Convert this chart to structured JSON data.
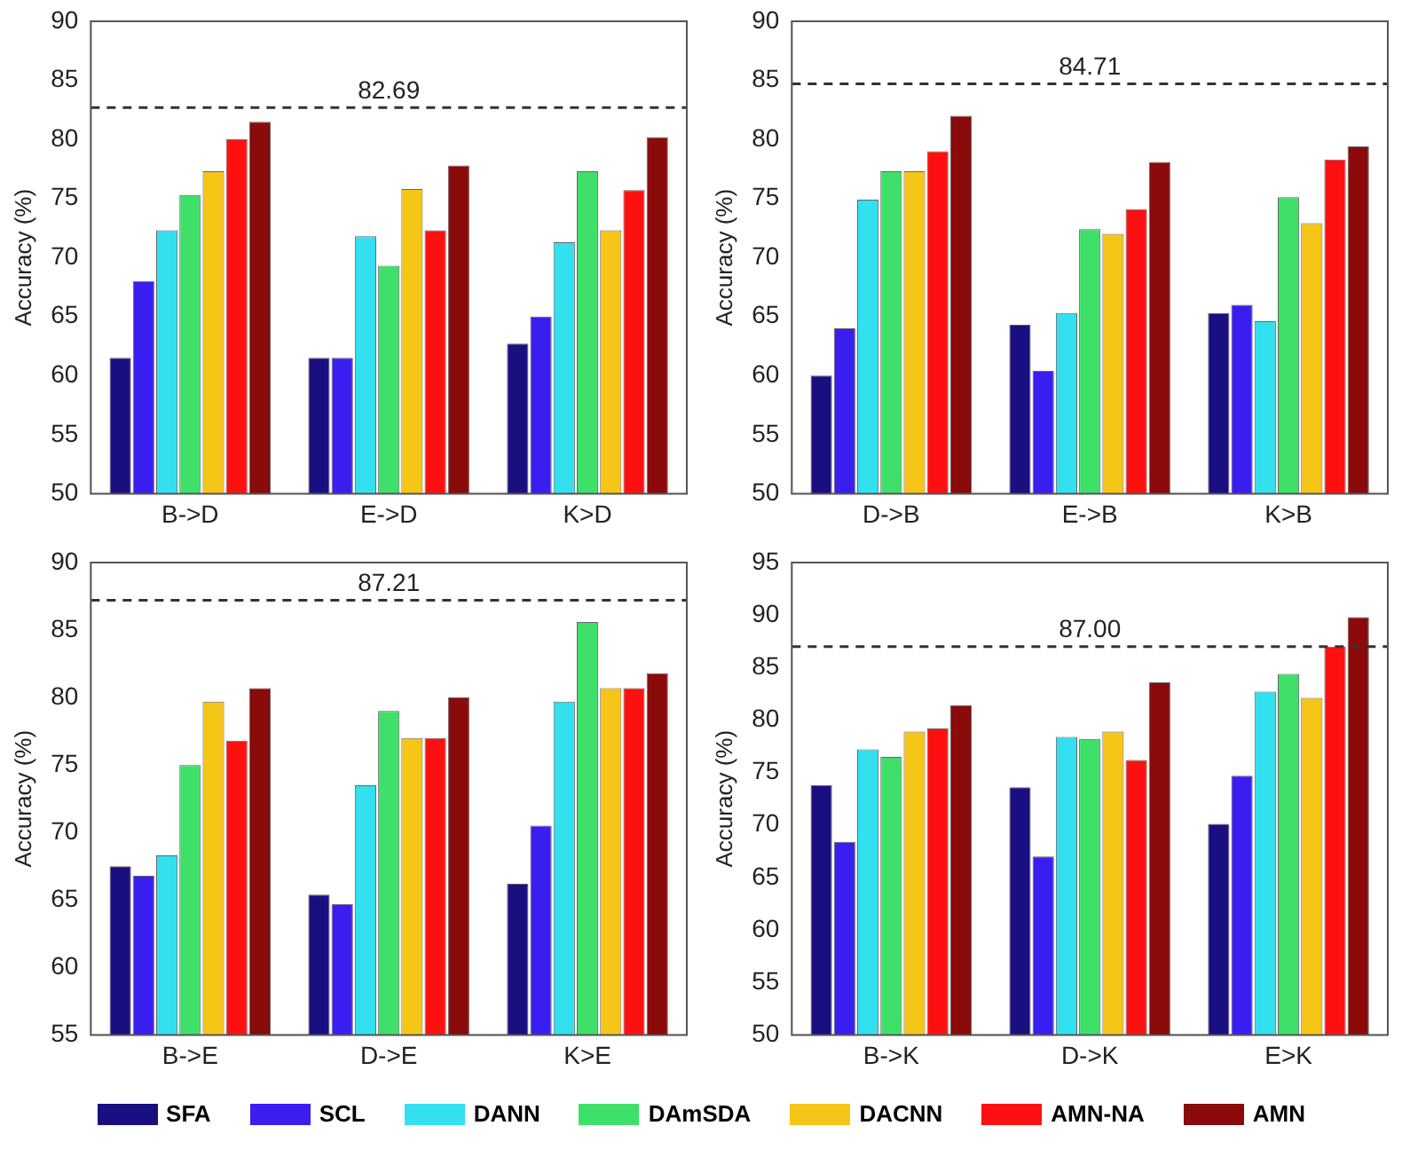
{
  "chart_data": [
    {
      "type": "bar",
      "ylabel": "Accuracy (%)",
      "categories": [
        "B->D",
        "E->D",
        "K>D"
      ],
      "ylim": [
        50,
        90
      ],
      "yticks": [
        50,
        55,
        60,
        65,
        70,
        75,
        80,
        85,
        90
      ],
      "grid": false,
      "legend": "bottom",
      "series": [
        {
          "name": "SFA",
          "color": "#1a0f80",
          "values": [
            61.5,
            61.5,
            62.7
          ]
        },
        {
          "name": "SCL",
          "color": "#3a1ef0",
          "values": [
            68,
            61.5,
            65
          ]
        },
        {
          "name": "DANN",
          "color": "#33e0f0",
          "values": [
            72.3,
            71.8,
            71.3
          ]
        },
        {
          "name": "DAmSDA",
          "color": "#3ee06a",
          "values": [
            75.3,
            69.3,
            77.3
          ]
        },
        {
          "name": "DACNN",
          "color": "#f5c518",
          "values": [
            77.3,
            75.8,
            72.3
          ]
        },
        {
          "name": "AMN-NA",
          "color": "#ff1010",
          "values": [
            80,
            72.3,
            75.7
          ]
        },
        {
          "name": "AMN",
          "color": "#8b0a0a",
          "values": [
            81.5,
            77.8,
            80.2
          ]
        }
      ],
      "ref_lines": [
        {
          "axis": "y",
          "value": 82.69,
          "label": "82.69",
          "line_style": "dashed"
        }
      ]
    },
    {
      "type": "bar",
      "ylabel": "Accuracy (%)",
      "categories": [
        "D->B",
        "E->B",
        "K>B"
      ],
      "ylim": [
        50,
        90
      ],
      "yticks": [
        50,
        55,
        60,
        65,
        70,
        75,
        80,
        85,
        90
      ],
      "grid": false,
      "series": [
        {
          "color": "#1a0f80",
          "values": [
            60,
            64.3,
            65.3
          ]
        },
        {
          "color": "#3a1ef0",
          "values": [
            64,
            60.4,
            66
          ]
        },
        {
          "color": "#33e0f0",
          "values": [
            74.9,
            65.3,
            64.6
          ]
        },
        {
          "color": "#3ee06a",
          "values": [
            77.3,
            72.4,
            75.1
          ]
        },
        {
          "color": "#f5c518",
          "values": [
            77.3,
            72,
            72.9
          ]
        },
        {
          "color": "#ff1010",
          "values": [
            79,
            74.1,
            78.3
          ]
        },
        {
          "color": "#8b0a0a",
          "values": [
            82,
            78.1,
            79.4
          ]
        }
      ],
      "ref_lines": [
        {
          "axis": "y",
          "value": 84.71,
          "label": "84.71",
          "line_style": "dashed"
        }
      ]
    },
    {
      "type": "bar",
      "ylabel": "Accuracy (%)",
      "categories": [
        "B->E",
        "D->E",
        "K>E"
      ],
      "ylim": [
        55,
        90
      ],
      "yticks": [
        55,
        60,
        65,
        70,
        75,
        80,
        85,
        90
      ],
      "grid": false,
      "series": [
        {
          "color": "#1a0f80",
          "values": [
            67.5,
            65.4,
            66.2
          ]
        },
        {
          "color": "#3a1ef0",
          "values": [
            66.8,
            64.7,
            70.5
          ]
        },
        {
          "color": "#33e0f0",
          "values": [
            68.3,
            73.5,
            79.7
          ]
        },
        {
          "color": "#3ee06a",
          "values": [
            75,
            79,
            85.6
          ]
        },
        {
          "color": "#f5c518",
          "values": [
            79.7,
            77,
            80.7
          ]
        },
        {
          "color": "#ff1010",
          "values": [
            76.8,
            77,
            80.7
          ]
        },
        {
          "color": "#8b0a0a",
          "values": [
            80.7,
            80,
            81.8
          ]
        }
      ],
      "ref_lines": [
        {
          "axis": "y",
          "value": 87.21,
          "label": "87.21",
          "line_style": "dashed"
        }
      ]
    },
    {
      "type": "bar",
      "ylabel": "Accuracy (%)",
      "categories": [
        "B->K",
        "D->K",
        "E>K"
      ],
      "ylim": [
        50,
        95
      ],
      "yticks": [
        50,
        55,
        60,
        65,
        70,
        75,
        80,
        85,
        90,
        95
      ],
      "grid": false,
      "series": [
        {
          "color": "#1a0f80",
          "values": [
            73.8,
            73.6,
            70.1
          ]
        },
        {
          "color": "#3a1ef0",
          "values": [
            68.4,
            67,
            74.7
          ]
        },
        {
          "color": "#33e0f0",
          "values": [
            77.2,
            78.4,
            82.7
          ]
        },
        {
          "color": "#3ee06a",
          "values": [
            76.5,
            78.2,
            84.4
          ]
        },
        {
          "color": "#f5c518",
          "values": [
            78.9,
            78.9,
            82.1
          ]
        },
        {
          "color": "#ff1010",
          "values": [
            79.2,
            76.2,
            87
          ]
        },
        {
          "color": "#8b0a0a",
          "values": [
            81.4,
            83.6,
            89.8
          ]
        }
      ],
      "ref_lines": [
        {
          "axis": "y",
          "value": 87,
          "label": "87.00",
          "line_style": "dashed"
        }
      ]
    }
  ]
}
